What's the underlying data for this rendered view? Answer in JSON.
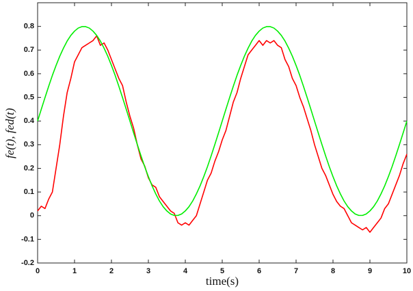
{
  "chart_data": {
    "type": "line",
    "xlabel": "time(s)",
    "ylabel": "fe(t), fed(t)",
    "xlim": [
      0,
      10
    ],
    "ylim": [
      -0.2,
      0.9
    ],
    "xticks": [
      0,
      1,
      2,
      3,
      4,
      5,
      6,
      7,
      8,
      9,
      10
    ],
    "yticks": [
      -0.2,
      -0.1,
      0,
      0.1,
      0.2,
      0.3,
      0.4,
      0.5,
      0.6,
      0.7,
      0.8
    ],
    "grid": false,
    "x": [
      0,
      0.1,
      0.2,
      0.3,
      0.4,
      0.5,
      0.6,
      0.7,
      0.8,
      0.9,
      1,
      1.1,
      1.2,
      1.3,
      1.4,
      1.5,
      1.6,
      1.7,
      1.8,
      1.9,
      2,
      2.1,
      2.2,
      2.3,
      2.4,
      2.5,
      2.6,
      2.7,
      2.8,
      2.9,
      3,
      3.1,
      3.2,
      3.3,
      3.4,
      3.5,
      3.6,
      3.7,
      3.8,
      3.9,
      4,
      4.1,
      4.2,
      4.3,
      4.4,
      4.5,
      4.6,
      4.7,
      4.8,
      4.9,
      5,
      5.1,
      5.2,
      5.3,
      5.4,
      5.5,
      5.6,
      5.7,
      5.8,
      5.9,
      6,
      6.1,
      6.2,
      6.3,
      6.4,
      6.5,
      6.6,
      6.7,
      6.8,
      6.9,
      7,
      7.1,
      7.2,
      7.3,
      7.4,
      7.5,
      7.6,
      7.7,
      7.8,
      7.9,
      8,
      8.1,
      8.2,
      8.3,
      8.4,
      8.5,
      8.6,
      8.7,
      8.8,
      8.9,
      9,
      9.1,
      9.2,
      9.3,
      9.4,
      9.5,
      9.6,
      9.7,
      9.8,
      9.9,
      10
    ],
    "series": [
      {
        "color": "#ff0000",
        "values": [
          0.02,
          0.04,
          0.03,
          0.07,
          0.1,
          0.2,
          0.3,
          0.42,
          0.52,
          0.58,
          0.65,
          0.68,
          0.71,
          0.72,
          0.73,
          0.74,
          0.76,
          0.72,
          0.73,
          0.7,
          0.66,
          0.62,
          0.58,
          0.55,
          0.48,
          0.42,
          0.37,
          0.3,
          0.24,
          0.21,
          0.16,
          0.13,
          0.12,
          0.08,
          0.06,
          0.04,
          0.02,
          0.01,
          -0.03,
          -0.04,
          -0.03,
          -0.04,
          -0.02,
          0.0,
          0.05,
          0.1,
          0.15,
          0.18,
          0.23,
          0.27,
          0.32,
          0.36,
          0.42,
          0.48,
          0.52,
          0.58,
          0.63,
          0.68,
          0.7,
          0.72,
          0.74,
          0.72,
          0.74,
          0.73,
          0.74,
          0.72,
          0.71,
          0.66,
          0.63,
          0.58,
          0.55,
          0.5,
          0.46,
          0.41,
          0.36,
          0.3,
          0.25,
          0.2,
          0.17,
          0.13,
          0.09,
          0.06,
          0.04,
          0.03,
          0.0,
          -0.03,
          -0.04,
          -0.05,
          -0.06,
          -0.05,
          -0.07,
          -0.05,
          -0.03,
          -0.01,
          0.03,
          0.05,
          0.09,
          0.13,
          0.17,
          0.22,
          0.26
        ]
      },
      {
        "color": "#00ee00",
        "values": [
          0.4,
          0.45,
          0.499,
          0.547,
          0.593,
          0.635,
          0.674,
          0.708,
          0.738,
          0.762,
          0.78,
          0.793,
          0.799,
          0.799,
          0.793,
          0.78,
          0.762,
          0.738,
          0.708,
          0.674,
          0.635,
          0.593,
          0.547,
          0.499,
          0.45,
          0.4,
          0.35,
          0.301,
          0.253,
          0.207,
          0.165,
          0.126,
          0.092,
          0.062,
          0.038,
          0.02,
          0.007,
          0.001,
          0.001,
          0.007,
          0.02,
          0.038,
          0.062,
          0.092,
          0.126,
          0.165,
          0.207,
          0.253,
          0.301,
          0.35,
          0.4,
          0.45,
          0.499,
          0.547,
          0.593,
          0.635,
          0.674,
          0.708,
          0.738,
          0.762,
          0.78,
          0.793,
          0.799,
          0.799,
          0.793,
          0.78,
          0.762,
          0.738,
          0.708,
          0.674,
          0.635,
          0.593,
          0.547,
          0.499,
          0.45,
          0.4,
          0.35,
          0.301,
          0.253,
          0.207,
          0.165,
          0.126,
          0.092,
          0.062,
          0.038,
          0.02,
          0.007,
          0.001,
          0.001,
          0.007,
          0.02,
          0.038,
          0.062,
          0.092,
          0.126,
          0.165,
          0.207,
          0.253,
          0.301,
          0.35,
          0.4
        ]
      }
    ]
  }
}
